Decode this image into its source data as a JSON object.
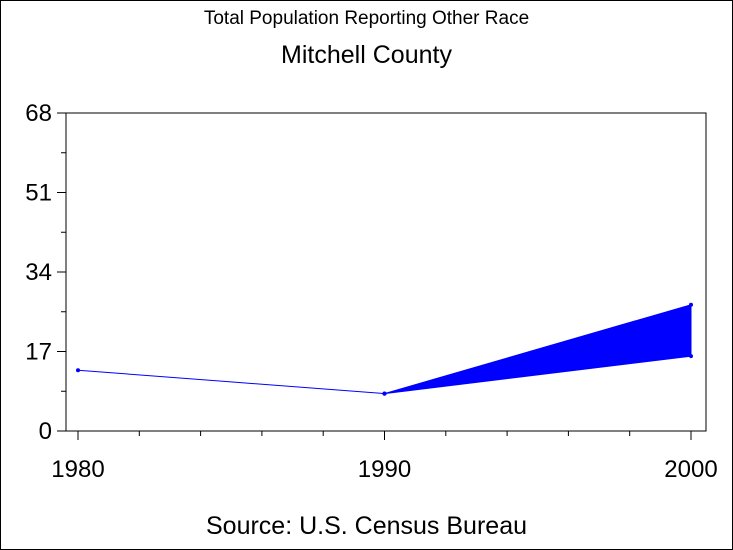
{
  "chart_data": {
    "type": "line",
    "title": "Total Population Reporting Other Race",
    "subtitle": "Mitchell County",
    "source": "Source: U.S. Census Bureau",
    "x_categories": [
      "1980",
      "1990",
      "2000"
    ],
    "y_ticks": [
      "0",
      "17",
      "34",
      "51",
      "68"
    ],
    "ylim": [
      0,
      68
    ],
    "xlim": [
      1980,
      2000
    ],
    "series": [
      {
        "x": [
          1980,
          1990
        ],
        "y": [
          13,
          8
        ]
      }
    ],
    "band": {
      "x": [
        1990,
        2000
      ],
      "lower": [
        8,
        16
      ],
      "upper": [
        8,
        27
      ]
    },
    "grid": false,
    "colors": {
      "series": "#0000ff",
      "axis": "#000000"
    }
  }
}
